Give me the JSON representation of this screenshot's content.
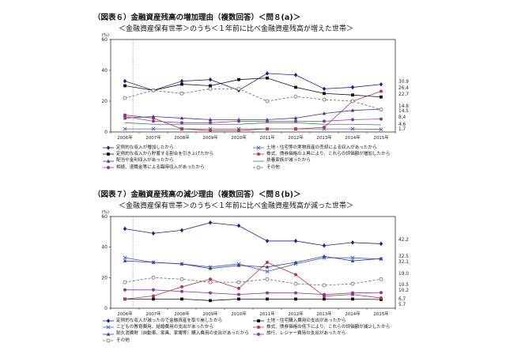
{
  "chart_data": [
    {
      "type": "line",
      "title": "（図表６）金融資産残高の増加理由（複数回答）＜問８(a)＞",
      "subtitle": "＜金融資産保有世帯＞のうち＜１年前に比べ金融資産残高が増えた世帯＞",
      "ylabel": "(%)",
      "ylim": [
        0,
        60
      ],
      "yticks": [
        "0",
        "20",
        "40",
        "60"
      ],
      "categories": [
        "2006年",
        "2007年",
        "2008年",
        "2009年",
        "2010年",
        "2011年",
        "2012年",
        "2013年",
        "2014年",
        "2015年"
      ],
      "series": [
        {
          "name": "定例的な収入が増加したから",
          "values": [
            33,
            27,
            33,
            34,
            27,
            38,
            37,
            28,
            29,
            30.9
          ],
          "color": "#1f1f8f",
          "marker": "diamond",
          "dash": "",
          "end_label": "30.9"
        },
        {
          "name": "土地・住宅等の実物資産の売却による収入があったから",
          "values": [
            2,
            2,
            2,
            2,
            2,
            2,
            2,
            2,
            2,
            1.7
          ],
          "color": "#3a66c4",
          "marker": "x",
          "dash": "",
          "end_label": "1.7"
        },
        {
          "name": "定例的な収入から貯蓄する割合を引き上げたから",
          "values": [
            30,
            27,
            31,
            30,
            34,
            35,
            29,
            25,
            24,
            22.7
          ],
          "color": "#111111",
          "marker": "square",
          "dash": "",
          "end_label": "22.7"
        },
        {
          "name": "株式、債券価格の上昇により、これらの評価額が増加したから",
          "values": [
            11,
            9,
            2,
            1,
            1,
            2,
            2,
            3,
            20,
            26.4
          ],
          "color": "#b83a3a",
          "marker": "circle",
          "dash": "",
          "end_label": "26.4"
        },
        {
          "name": "配当や金利収入があったから",
          "values": [
            9,
            10,
            9,
            8,
            8,
            8,
            9,
            12,
            14,
            14.8
          ],
          "color": "#3a3a9a",
          "marker": "triangle",
          "dash": "",
          "end_label": "14.8"
        },
        {
          "name": "扶養家族が減ったから",
          "values": [
            6,
            5,
            5,
            5,
            5,
            6,
            6,
            5,
            5,
            4.6
          ],
          "color": "#2e8b57",
          "marker": "none",
          "dash": "",
          "end_label": "4.6"
        },
        {
          "name": "相続、退職金等による臨時収入があったから",
          "values": [
            10,
            7,
            6,
            6,
            7,
            7,
            7,
            7,
            8,
            8.4
          ],
          "color": "#8a3aa8",
          "marker": "circle",
          "dash": "",
          "end_label": "8.4"
        },
        {
          "name": "その他",
          "values": [
            22,
            27,
            25,
            28,
            28,
            20,
            23,
            21,
            20,
            14.5
          ],
          "color": "#666666",
          "marker": "circle-open",
          "dash": "3,2",
          "end_label": "14.5"
        }
      ]
    },
    {
      "type": "line",
      "title": "（図表７）金融資産残高の減少理由（複数回答）＜問８(b)＞",
      "subtitle": "＜金融資産保有世帯＞のうち＜１年前に比べ金融資産残高が減った世帯＞",
      "ylabel": "(%)",
      "ylim": [
        0,
        60
      ],
      "yticks": [
        "0",
        "20",
        "40",
        "60"
      ],
      "categories": [
        "2006年",
        "2007年",
        "2008年",
        "2009年",
        "2010年",
        "2011年",
        "2012年",
        "2013年",
        "2014年",
        "2015年"
      ],
      "series": [
        {
          "name": "定例的な収入が減ったので金融資産を取り崩したから",
          "values": [
            52,
            49,
            51,
            56,
            54,
            44,
            44,
            41,
            43,
            42.2
          ],
          "color": "#1f1f8f",
          "marker": "diamond",
          "dash": "",
          "end_label": "42.2"
        },
        {
          "name": "土地・住宅購入費用の支出があったから",
          "values": [
            6,
            6,
            6,
            5,
            6,
            6,
            6,
            6,
            6,
            5.7
          ],
          "color": "#111111",
          "marker": "square",
          "dash": "",
          "end_label": "5.7"
        },
        {
          "name": "こどもの教育費用、結婚費用の支出があったから",
          "values": [
            33,
            30,
            29,
            27,
            29,
            24,
            29,
            33,
            33,
            32.1
          ],
          "color": "#3a66c4",
          "marker": "x",
          "dash": "",
          "end_label": "32.1"
        },
        {
          "name": "株式、債券価格の低下により、これらの評価額が減少したから",
          "values": [
            6,
            8,
            14,
            19,
            13,
            30,
            22,
            8,
            9,
            6.7
          ],
          "color": "#b83a3a",
          "marker": "circle",
          "dash": "",
          "end_label": "6.7"
        },
        {
          "name": "耐久消費財（自動車、家具、家電等）購入費用の支出があったから",
          "values": [
            31,
            30,
            29,
            26,
            28,
            27,
            30,
            34,
            31,
            32.5
          ],
          "color": "#3a3a9a",
          "marker": "triangle",
          "dash": "",
          "end_label": "32.5"
        },
        {
          "name": "旅行、レジャー費用の支出があったから",
          "values": [
            12,
            12,
            11,
            10,
            9,
            10,
            10,
            9,
            10,
            10.2
          ],
          "color": "#8a3aa8",
          "marker": "circle",
          "dash": "",
          "end_label": "10.2"
        },
        {
          "name": "その他",
          "values": [
            17,
            20,
            19,
            17,
            17,
            19,
            16,
            15,
            16,
            19.0
          ],
          "color": "#666666",
          "marker": "circle-open",
          "dash": "3,2",
          "end_label": "19.0"
        }
      ],
      "extra_labels": [
        "10.5"
      ]
    }
  ]
}
